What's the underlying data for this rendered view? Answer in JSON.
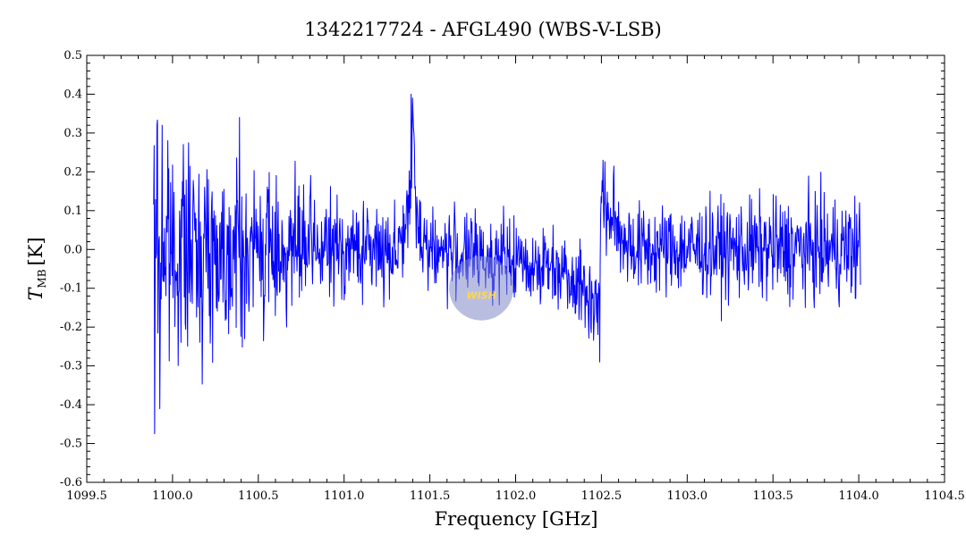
{
  "chart_data": {
    "type": "line",
    "title": "1342217724 - AFGL490 (WBS-V-LSB)",
    "xlabel": "Frequency [GHz]",
    "ylabel_main": "T",
    "ylabel_sub": "MB",
    "ylabel_unit": "[K]",
    "xlim": [
      1099.5,
      1104.5
    ],
    "ylim": [
      -0.6,
      0.5
    ],
    "x_ticks": [
      1099.5,
      1100.0,
      1100.5,
      1101.0,
      1101.5,
      1102.0,
      1102.5,
      1103.0,
      1103.5,
      1104.0,
      1104.5
    ],
    "x_tick_labels": [
      "1099.5",
      "1100.0",
      "1100.5",
      "1101.0",
      "1101.5",
      "1102.0",
      "1102.5",
      "1103.0",
      "1103.5",
      "1104.0",
      "1104.5"
    ],
    "y_ticks": [
      -0.6,
      -0.5,
      -0.4,
      -0.3,
      -0.2,
      -0.1,
      0.0,
      0.1,
      0.2,
      0.3,
      0.4,
      0.5
    ],
    "y_tick_labels": [
      "-0.6",
      "-0.5",
      "-0.4",
      "-0.3",
      "-0.2",
      "-0.1",
      "0.0",
      "0.1",
      "0.2",
      "0.3",
      "0.4",
      "0.5"
    ],
    "series_color": "#0000ff",
    "grid": false,
    "series": [
      {
        "x_start": 1099.89,
        "x_end": 1104.01,
        "n_points": 1500,
        "noise_envelope": [
          [
            1099.89,
            0.16
          ],
          [
            1100.1,
            0.12
          ],
          [
            1100.5,
            0.1
          ],
          [
            1101.0,
            0.06
          ],
          [
            1101.5,
            0.055
          ],
          [
            1102.0,
            0.05
          ],
          [
            1102.5,
            0.055
          ],
          [
            1103.0,
            0.06
          ],
          [
            1103.5,
            0.065
          ],
          [
            1104.01,
            0.07
          ]
        ],
        "baseline": [
          [
            1099.89,
            0.0
          ],
          [
            1101.3,
            0.0
          ],
          [
            1101.38,
            0.08
          ],
          [
            1101.4,
            0.3
          ],
          [
            1101.42,
            0.08
          ],
          [
            1101.5,
            0.0
          ],
          [
            1102.3,
            -0.05
          ],
          [
            1102.48,
            -0.15
          ],
          [
            1102.5,
            0.12
          ],
          [
            1102.6,
            0.05
          ],
          [
            1102.7,
            0.0
          ],
          [
            1104.01,
            0.0
          ]
        ],
        "extremes": [
          [
            1099.895,
            -0.475
          ],
          [
            1099.91,
            0.32
          ],
          [
            1099.925,
            -0.41
          ],
          [
            1099.94,
            0.32
          ],
          [
            1100.39,
            0.34
          ],
          [
            1100.42,
            -0.23
          ],
          [
            1101.39,
            0.4
          ],
          [
            1101.4,
            0.39
          ],
          [
            1102.49,
            -0.29
          ],
          [
            1102.51,
            0.23
          ]
        ]
      }
    ],
    "watermark": {
      "label": "WISH",
      "x": 1101.8,
      "y": -0.1
    }
  }
}
